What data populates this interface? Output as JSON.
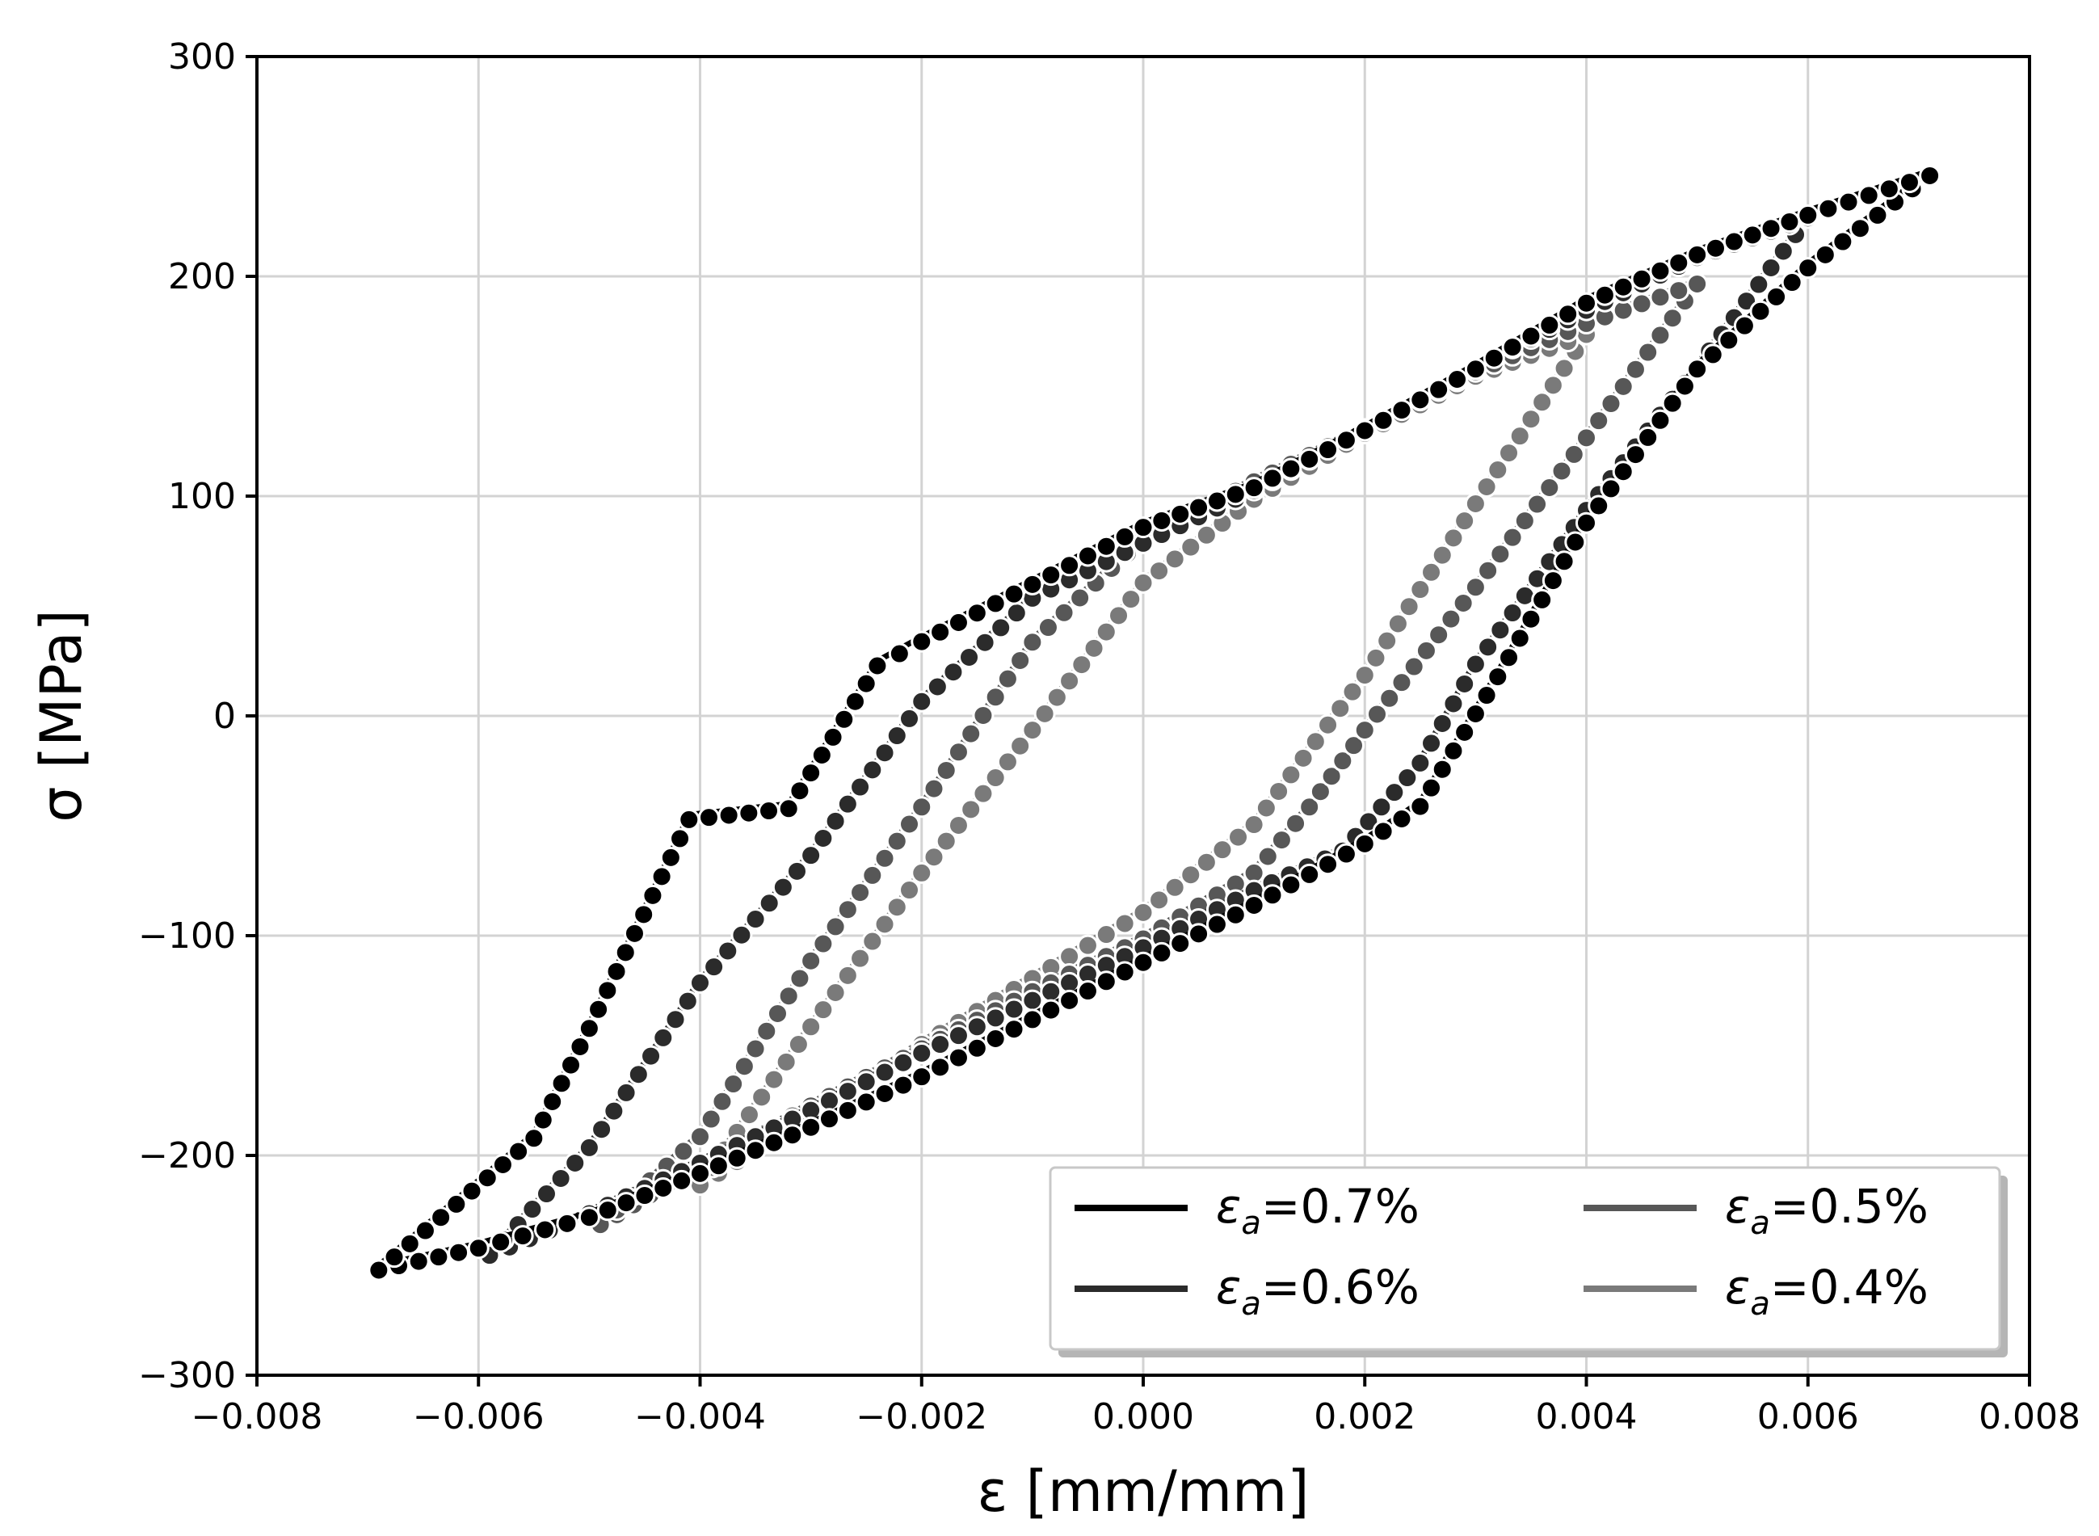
{
  "chart_data": {
    "type": "line",
    "xlabel": "ε [mm/mm]",
    "ylabel": "σ [MPa]",
    "xlim": [
      -0.008,
      0.008
    ],
    "ylim": [
      -300,
      300
    ],
    "x_ticks": [
      -0.008,
      -0.006,
      -0.004,
      -0.002,
      0.0,
      0.002,
      0.004,
      0.006,
      0.008
    ],
    "x_tick_labels": [
      "−0.008",
      "−0.006",
      "−0.004",
      "−0.002",
      "0.000",
      "0.002",
      "0.004",
      "0.006",
      "0.008"
    ],
    "y_ticks": [
      -300,
      -200,
      -100,
      0,
      100,
      200,
      300
    ],
    "y_tick_labels": [
      "−300",
      "−200",
      "−100",
      "0",
      "100",
      "200",
      "300"
    ],
    "grid": true,
    "legend": {
      "placement": "lower-right",
      "columns": 2
    },
    "series": [
      {
        "name": "εa=0.7%",
        "legend_prefix": "ε",
        "legend_sub": "a",
        "legend_value": "=0.7%",
        "color": "#000000",
        "upper_branch": [
          [
            -0.0069,
            -250
          ],
          [
            -0.006,
            -240
          ],
          [
            -0.005,
            -226
          ],
          [
            -0.004,
            -206
          ],
          [
            -0.003,
            -185
          ],
          [
            -0.002,
            -162
          ],
          [
            -0.001,
            -136
          ],
          [
            0.0,
            -110
          ],
          [
            0.001,
            -84
          ],
          [
            0.002,
            -56
          ],
          [
            0.0025,
            -39
          ],
          [
            0.0032,
            20
          ],
          [
            0.004,
            90
          ],
          [
            0.005,
            160
          ],
          [
            0.006,
            206
          ],
          [
            0.0071,
            248
          ]
        ],
        "lower_branch": [
          [
            0.0071,
            248
          ],
          [
            0.006,
            230
          ],
          [
            0.005,
            212
          ],
          [
            0.004,
            190
          ],
          [
            0.003,
            160
          ],
          [
            0.002,
            132
          ],
          [
            0.001,
            106
          ],
          [
            0.0,
            88
          ],
          [
            -0.001,
            62
          ],
          [
            -0.002,
            36
          ],
          [
            -0.0024,
            25
          ],
          [
            -0.0032,
            -40
          ],
          [
            -0.0041,
            -45
          ],
          [
            -0.005,
            -140
          ],
          [
            -0.0055,
            -190
          ],
          [
            -0.0069,
            -250
          ]
        ]
      },
      {
        "name": "εa=0.6%",
        "legend_prefix": "ε",
        "legend_sub": "a",
        "legend_value": "=0.6%",
        "color": "#2b2b2b",
        "upper_branch": [
          [
            -0.0059,
            -244
          ],
          [
            -0.005,
            -225
          ],
          [
            -0.004,
            -202
          ],
          [
            -0.003,
            -178
          ],
          [
            -0.002,
            -152
          ],
          [
            -0.001,
            -128
          ],
          [
            0.0,
            -104
          ],
          [
            0.001,
            -78
          ],
          [
            0.0018,
            -60
          ],
          [
            0.0025,
            -20
          ],
          [
            0.003,
            25
          ],
          [
            0.004,
            95
          ],
          [
            0.005,
            160
          ],
          [
            0.006,
            228
          ]
        ],
        "lower_branch": [
          [
            0.006,
            228
          ],
          [
            0.005,
            210
          ],
          [
            0.004,
            186
          ],
          [
            0.003,
            160
          ],
          [
            0.002,
            132
          ],
          [
            0.001,
            104
          ],
          [
            0.0,
            80
          ],
          [
            -0.001,
            55
          ],
          [
            -0.002,
            8
          ],
          [
            -0.003,
            -62
          ],
          [
            -0.004,
            -120
          ],
          [
            -0.005,
            -195
          ],
          [
            -0.0059,
            -244
          ]
        ]
      },
      {
        "name": "εa=0.5%",
        "legend_prefix": "ε",
        "legend_sub": "a",
        "legend_value": "=0.5%",
        "color": "#575757",
        "upper_branch": [
          [
            -0.0049,
            -230
          ],
          [
            -0.004,
            -203
          ],
          [
            -0.003,
            -176
          ],
          [
            -0.002,
            -150
          ],
          [
            -0.001,
            -124
          ],
          [
            0.0,
            -100
          ],
          [
            0.001,
            -70
          ],
          [
            0.0015,
            -40
          ],
          [
            0.002,
            -5
          ],
          [
            0.003,
            60
          ],
          [
            0.004,
            128
          ],
          [
            0.005,
            198
          ]
        ],
        "lower_branch": [
          [
            0.005,
            198
          ],
          [
            0.004,
            180
          ],
          [
            0.003,
            158
          ],
          [
            0.002,
            132
          ],
          [
            0.001,
            108
          ],
          [
            0.0,
            82
          ],
          [
            -0.001,
            35
          ],
          [
            -0.002,
            -40
          ],
          [
            -0.003,
            -110
          ],
          [
            -0.004,
            -190
          ],
          [
            -0.0049,
            -230
          ]
        ]
      },
      {
        "name": "εa=0.4%",
        "legend_prefix": "ε",
        "legend_sub": "a",
        "legend_value": "=0.4%",
        "color": "#7a7a7a",
        "upper_branch": [
          [
            -0.004,
            -212
          ],
          [
            -0.003,
            -180
          ],
          [
            -0.002,
            -148
          ],
          [
            -0.001,
            -118
          ],
          [
            0.0,
            -88
          ],
          [
            0.001,
            -48
          ],
          [
            0.002,
            20
          ],
          [
            0.003,
            98
          ],
          [
            0.004,
            175
          ]
        ],
        "lower_branch": [
          [
            0.004,
            175
          ],
          [
            0.003,
            156
          ],
          [
            0.002,
            130
          ],
          [
            0.001,
            100
          ],
          [
            0.0,
            62
          ],
          [
            -0.001,
            -5
          ],
          [
            -0.002,
            -70
          ],
          [
            -0.003,
            -140
          ],
          [
            -0.004,
            -212
          ]
        ]
      }
    ]
  }
}
